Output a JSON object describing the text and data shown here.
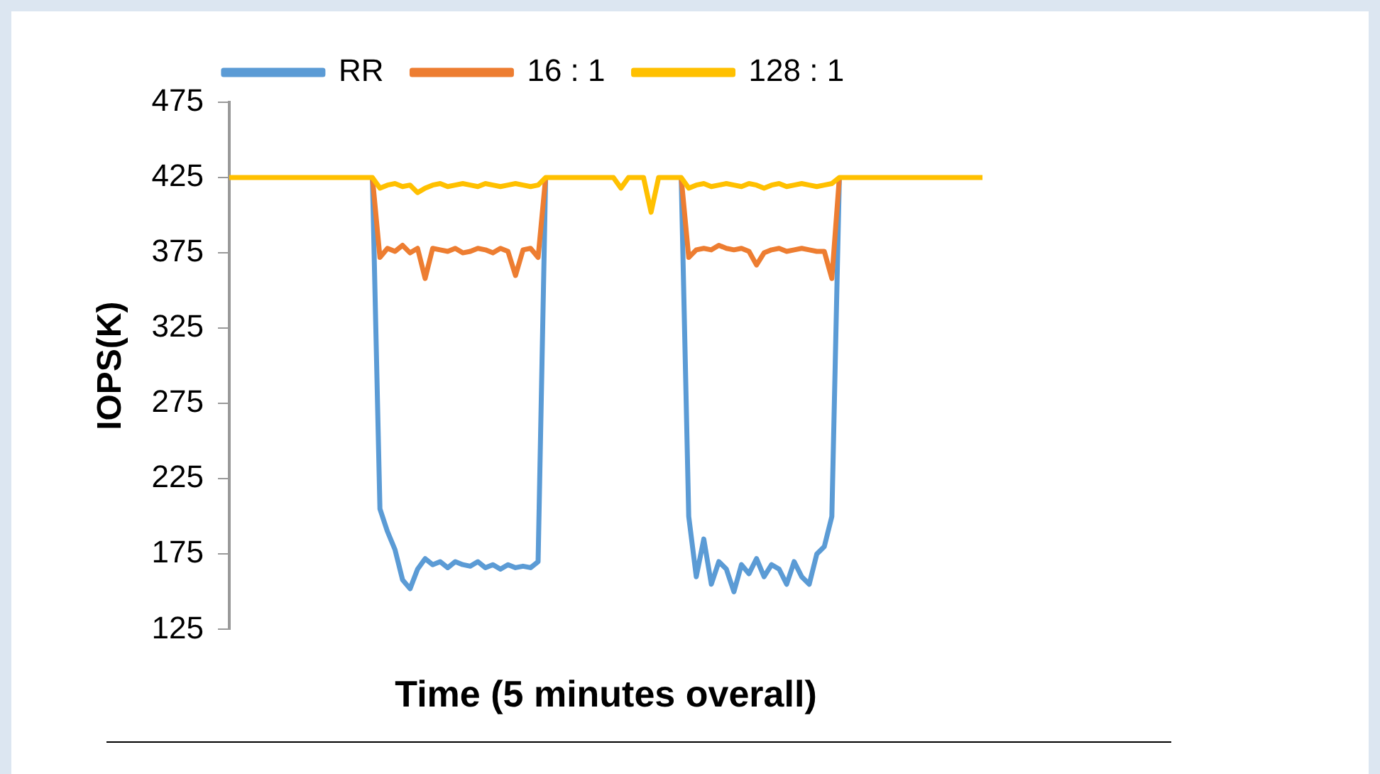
{
  "chart_data": {
    "type": "line",
    "xlabel": "Time (5 minutes overall)",
    "ylabel": "IOPS(K)",
    "categories": [
      null,
      null,
      null,
      null,
      null,
      null,
      null,
      null,
      null,
      null,
      null,
      null,
      null,
      null,
      null,
      null,
      null,
      null,
      null,
      null,
      null,
      null,
      null,
      null,
      null,
      null,
      null,
      null,
      null,
      null,
      null,
      null,
      null,
      null,
      null,
      null,
      null,
      null,
      null,
      null,
      null,
      null,
      null,
      null,
      null,
      null,
      null,
      null,
      null,
      null,
      null,
      null,
      null,
      null,
      null,
      null,
      null,
      null,
      null,
      null,
      null,
      null,
      null,
      null,
      null,
      null,
      null,
      null,
      null,
      null,
      null,
      null,
      null,
      null,
      null,
      null,
      null,
      null,
      null,
      null,
      null,
      null,
      null,
      null,
      null,
      null,
      null,
      null,
      null,
      null,
      null,
      null,
      null,
      null,
      null,
      null,
      null,
      null,
      null,
      null,
      null
    ],
    "ylim": [
      125,
      475
    ],
    "yticks": [
      125,
      175,
      225,
      275,
      325,
      375,
      425,
      475
    ],
    "grid": false,
    "legend": "top",
    "marker": "none",
    "line_style": "solid",
    "series": [
      {
        "name": "RR",
        "color": "#5b9bd5",
        "values": [
          null,
          null,
          null,
          null,
          null,
          null,
          null,
          null,
          null,
          null,
          null,
          null,
          null,
          null,
          null,
          null,
          null,
          null,
          null,
          425,
          205,
          190,
          178,
          158,
          152,
          165,
          172,
          168,
          170,
          166,
          170,
          168,
          167,
          170,
          166,
          168,
          165,
          168,
          166,
          167,
          166,
          170,
          425,
          null,
          null,
          null,
          null,
          null,
          null,
          null,
          null,
          null,
          null,
          null,
          null,
          null,
          null,
          null,
          null,
          null,
          425,
          200,
          160,
          185,
          155,
          170,
          165,
          150,
          168,
          162,
          172,
          160,
          168,
          165,
          155,
          170,
          160,
          155,
          175,
          180,
          200,
          425,
          null,
          null,
          null,
          null,
          null,
          null,
          null,
          null,
          null,
          null,
          null,
          null,
          null,
          null,
          null,
          null,
          null,
          null,
          null
        ]
      },
      {
        "name": "16 : 1",
        "color": "#ed7d31",
        "values": [
          null,
          null,
          null,
          null,
          null,
          null,
          null,
          null,
          null,
          null,
          null,
          null,
          null,
          null,
          null,
          null,
          null,
          null,
          null,
          425,
          372,
          378,
          376,
          380,
          375,
          378,
          358,
          378,
          377,
          376,
          378,
          375,
          376,
          378,
          377,
          375,
          378,
          376,
          360,
          377,
          378,
          372,
          425,
          null,
          null,
          null,
          null,
          null,
          null,
          null,
          null,
          null,
          null,
          null,
          null,
          null,
          null,
          null,
          null,
          null,
          425,
          372,
          377,
          378,
          377,
          380,
          378,
          377,
          378,
          376,
          367,
          375,
          377,
          378,
          376,
          377,
          378,
          377,
          376,
          376,
          358,
          425,
          null,
          null,
          null,
          null,
          null,
          null,
          null,
          null,
          null,
          null,
          null,
          null,
          null,
          null,
          null,
          null,
          null,
          null,
          null
        ]
      },
      {
        "name": "128 : 1",
        "color": "#ffc000",
        "values": [
          425,
          425,
          425,
          425,
          425,
          425,
          425,
          425,
          425,
          425,
          425,
          425,
          425,
          425,
          425,
          425,
          425,
          425,
          425,
          425,
          418,
          420,
          421,
          419,
          420,
          415,
          418,
          420,
          421,
          419,
          420,
          421,
          420,
          419,
          421,
          420,
          419,
          420,
          421,
          420,
          419,
          420,
          425,
          425,
          425,
          425,
          425,
          425,
          425,
          425,
          425,
          425,
          418,
          425,
          425,
          425,
          402,
          425,
          425,
          425,
          425,
          418,
          420,
          421,
          419,
          420,
          421,
          420,
          419,
          421,
          420,
          418,
          420,
          421,
          419,
          420,
          421,
          420,
          419,
          420,
          421,
          425,
          425,
          425,
          425,
          425,
          425,
          425,
          425,
          425,
          425,
          425,
          425,
          425,
          425,
          425,
          425,
          425,
          425,
          425,
          425
        ]
      }
    ]
  }
}
